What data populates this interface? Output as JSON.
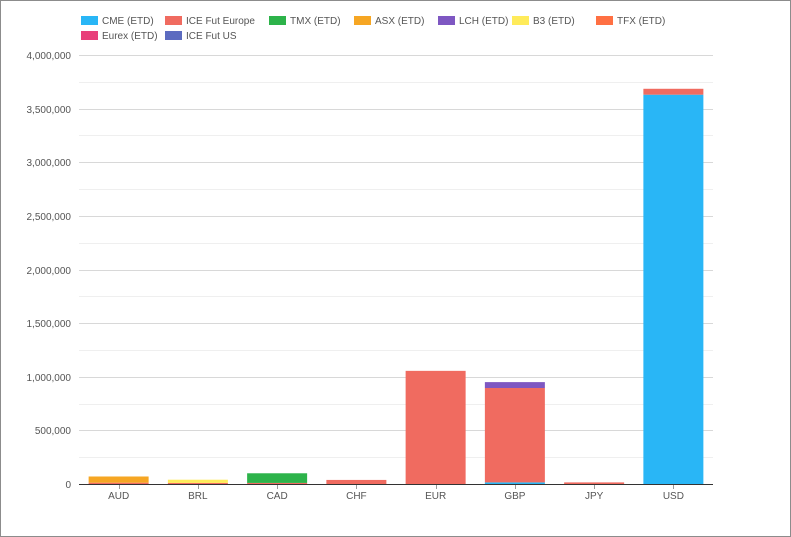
{
  "chart_data": {
    "type": "bar",
    "stacked": true,
    "title": "",
    "xlabel": "",
    "ylabel": "",
    "categories": [
      "AUD",
      "BRL",
      "CAD",
      "CHF",
      "EUR",
      "GBP",
      "JPY",
      "USD"
    ],
    "ylim": [
      0,
      4000000
    ],
    "yticks": [
      0,
      500000,
      1000000,
      1500000,
      2000000,
      2500000,
      3000000,
      3500000,
      4000000
    ],
    "ytick_labels": [
      "0",
      "500,000",
      "1,000,000",
      "1,500,000",
      "2,000,000",
      "2,500,000",
      "3,000,000",
      "3,500,000",
      "4,000,000"
    ],
    "grid": true,
    "legend_position": "top-left",
    "series": [
      {
        "name": "CME (ETD)",
        "color": "#29b6f6",
        "values": [
          0,
          0,
          0,
          0,
          0,
          15000,
          0,
          3630000
        ]
      },
      {
        "name": "ICE Fut Europe",
        "color": "#f06b60",
        "values": [
          12000,
          10000,
          10000,
          38000,
          1055000,
          880000,
          15000,
          55000
        ]
      },
      {
        "name": "TMX (ETD)",
        "color": "#2db34a",
        "values": [
          0,
          0,
          90000,
          0,
          0,
          0,
          0,
          0
        ]
      },
      {
        "name": "ASX (ETD)",
        "color": "#f6a623",
        "values": [
          58000,
          0,
          0,
          0,
          0,
          0,
          0,
          0
        ]
      },
      {
        "name": "LCH (ETD)",
        "color": "#7e57c2",
        "values": [
          0,
          0,
          0,
          0,
          0,
          55000,
          0,
          0
        ]
      },
      {
        "name": "B3 (ETD)",
        "color": "#ffeb5a",
        "values": [
          0,
          30000,
          0,
          0,
          0,
          0,
          0,
          0
        ]
      },
      {
        "name": "TFX (ETD)",
        "color": "#ff7043",
        "values": [
          0,
          0,
          0,
          0,
          0,
          0,
          0,
          0
        ]
      },
      {
        "name": "Eurex (ETD)",
        "color": "#e8407a",
        "values": [
          0,
          0,
          0,
          0,
          0,
          0,
          0,
          0
        ]
      },
      {
        "name": "ICE Fut US",
        "color": "#5c6bc0",
        "values": [
          0,
          0,
          0,
          0,
          0,
          0,
          0,
          0
        ]
      }
    ]
  }
}
